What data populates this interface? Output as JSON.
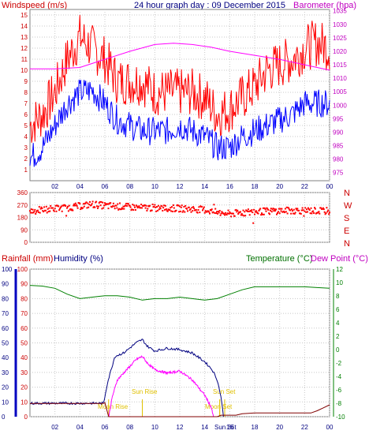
{
  "chart_data": [
    {
      "type": "line",
      "title": "24 hour graph day : 09 December 2015",
      "left_label": "Windspeed (m/s)",
      "right_label": "Barometer (hpa)",
      "x_ticks": [
        "02",
        "04",
        "06",
        "08",
        "10",
        "12",
        "14",
        "16",
        "18",
        "20",
        "22",
        "00"
      ],
      "y_left_ticks": [
        1,
        2,
        3,
        4,
        5,
        6,
        7,
        8,
        9,
        10,
        11,
        12,
        13,
        14,
        15
      ],
      "ylim_left": [
        0,
        15.5
      ],
      "y_right_ticks": [
        975,
        980,
        985,
        990,
        995,
        1000,
        1005,
        1010,
        1015,
        1020,
        1025,
        1030,
        1035
      ],
      "ylim_right": [
        972,
        1035.5
      ],
      "series": [
        {
          "name": "gust",
          "color": "#ff0000",
          "axis": "left",
          "points": [
            [
              0,
              5
            ],
            [
              1,
              6
            ],
            [
              2,
              8
            ],
            [
              3,
              11
            ],
            [
              4,
              13
            ],
            [
              5,
              12
            ],
            [
              6,
              11
            ],
            [
              7,
              9
            ],
            [
              8,
              9
            ],
            [
              9,
              9
            ],
            [
              10,
              8
            ],
            [
              11,
              8
            ],
            [
              12,
              8
            ],
            [
              13,
              8
            ],
            [
              14,
              7.5
            ],
            [
              15,
              6
            ],
            [
              16,
              6.5
            ],
            [
              17,
              7.5
            ],
            [
              18,
              8.5
            ],
            [
              19,
              10
            ],
            [
              20,
              10.5
            ],
            [
              21,
              11
            ],
            [
              22,
              12
            ],
            [
              23,
              12.5
            ],
            [
              24,
              12
            ]
          ]
        },
        {
          "name": "average",
          "color": "#0000ff",
          "axis": "left",
          "points": [
            [
              0,
              2
            ],
            [
              1,
              3
            ],
            [
              2,
              5
            ],
            [
              3,
              7
            ],
            [
              4,
              8
            ],
            [
              5,
              8.2
            ],
            [
              6,
              7
            ],
            [
              7,
              5.5
            ],
            [
              8,
              5
            ],
            [
              9,
              4.5
            ],
            [
              10,
              4.5
            ],
            [
              11,
              4.5
            ],
            [
              12,
              5
            ],
            [
              13,
              4.5
            ],
            [
              14,
              4
            ],
            [
              15,
              3
            ],
            [
              16,
              3
            ],
            [
              17,
              4
            ],
            [
              18,
              4.5
            ],
            [
              19,
              5
            ],
            [
              20,
              5.5
            ],
            [
              21,
              6
            ],
            [
              22,
              7
            ],
            [
              23,
              7
            ],
            [
              24,
              7
            ]
          ]
        },
        {
          "name": "barometer",
          "color": "#ff00ff",
          "axis": "right",
          "points": [
            [
              0,
              1013.5
            ],
            [
              2,
              1013.5
            ],
            [
              4,
              1014
            ],
            [
              6,
              1017
            ],
            [
              8,
              1020
            ],
            [
              10,
              1022.5
            ],
            [
              11.5,
              1023
            ],
            [
              13,
              1022.5
            ],
            [
              14.5,
              1021.5
            ],
            [
              16,
              1020
            ],
            [
              18,
              1018.5
            ],
            [
              20,
              1017
            ],
            [
              22,
              1015
            ],
            [
              24,
              1013
            ]
          ]
        }
      ]
    },
    {
      "type": "scatter",
      "right_labels": [
        "N",
        "W",
        "S",
        "E",
        "N"
      ],
      "x_ticks": [
        "02",
        "04",
        "06",
        "08",
        "10",
        "12",
        "14",
        "16",
        "18",
        "20",
        "22",
        "00"
      ],
      "y_ticks": [
        0,
        90,
        180,
        270,
        360
      ],
      "ylim": [
        0,
        360
      ],
      "series": [
        {
          "name": "direction",
          "color": "#ff0000",
          "points": [
            [
              0,
              225
            ],
            [
              1,
              235
            ],
            [
              2,
              245
            ],
            [
              3,
              250
            ],
            [
              4,
              262
            ],
            [
              5,
              275
            ],
            [
              6,
              265
            ],
            [
              7,
              260
            ],
            [
              8,
              255
            ],
            [
              9,
              250
            ],
            [
              10,
              250
            ],
            [
              11,
              245
            ],
            [
              12,
              245
            ],
            [
              13,
              240
            ],
            [
              14,
              235
            ],
            [
              15,
              215
            ],
            [
              16,
              205
            ],
            [
              17,
              215
            ],
            [
              18,
              220
            ],
            [
              19,
              225
            ],
            [
              20,
              228
            ],
            [
              21,
              230
            ],
            [
              22,
              230
            ],
            [
              23,
              228
            ],
            [
              24,
              225
            ]
          ]
        }
      ]
    },
    {
      "type": "line",
      "left_label_1": "Rainfall (mm)",
      "left_label_2": "Humidity (%)",
      "right_label_1": "Temperature (°C)",
      "right_label_2": "Dew Point (°C)",
      "x_ticks": [
        "02",
        "04",
        "06",
        "08",
        "10",
        "12",
        "14",
        "16",
        "18",
        "20",
        "22",
        "00"
      ],
      "y_left_ticks": [
        0,
        10,
        20,
        30,
        40,
        50,
        60,
        70,
        80,
        90,
        100
      ],
      "ylim_left": [
        0,
        100
      ],
      "y_right_ticks": [
        -10,
        -8,
        -6,
        -4,
        -2,
        0,
        2,
        4,
        6,
        8,
        10,
        12
      ],
      "ylim_right": [
        -10,
        12
      ],
      "annotations": [
        "Moon Rise",
        "Sun Rise",
        "Sun Set",
        "Moon Set",
        "Sun 36t"
      ],
      "series": [
        {
          "name": "humidity",
          "color": "#008000",
          "axis": "left",
          "points": [
            [
              0,
              89
            ],
            [
              1,
              88.5
            ],
            [
              2,
              87
            ],
            [
              3,
              83
            ],
            [
              4,
              80
            ],
            [
              5,
              81
            ],
            [
              6,
              82
            ],
            [
              7,
              82
            ],
            [
              8,
              81
            ],
            [
              9,
              79
            ],
            [
              10,
              80
            ],
            [
              11,
              80
            ],
            [
              12,
              81
            ],
            [
              13,
              80
            ],
            [
              14,
              79
            ],
            [
              15,
              80
            ],
            [
              16,
              83
            ],
            [
              17,
              86
            ],
            [
              18,
              88
            ],
            [
              19,
              88
            ],
            [
              20,
              88
            ],
            [
              21,
              88
            ],
            [
              22,
              88
            ],
            [
              23,
              87.5
            ],
            [
              24,
              87
            ]
          ]
        },
        {
          "name": "temperature",
          "color": "#000080",
          "axis": "right",
          "points": [
            [
              0,
              -8
            ],
            [
              5.9,
              -8
            ],
            [
              6.2,
              -5
            ],
            [
              6.8,
              -1
            ],
            [
              7.5,
              -0.5
            ],
            [
              8.5,
              1
            ],
            [
              9,
              1.5
            ],
            [
              9.4,
              0.5
            ],
            [
              10,
              -0.2
            ],
            [
              11,
              0.2
            ],
            [
              12,
              0
            ],
            [
              13,
              -0.5
            ],
            [
              14,
              -1.8
            ],
            [
              14.6,
              -3
            ],
            [
              15,
              -4.5
            ],
            [
              15.3,
              -7
            ],
            [
              15.5,
              -10
            ]
          ]
        },
        {
          "name": "dew_point",
          "color": "#ff00ff",
          "axis": "right",
          "points": [
            [
              6.3,
              -10
            ],
            [
              6.6,
              -7
            ],
            [
              7,
              -4.5
            ],
            [
              7.5,
              -3.5
            ],
            [
              8,
              -2.5
            ],
            [
              8.5,
              -1.5
            ],
            [
              9,
              -1
            ],
            [
              9.4,
              -2
            ],
            [
              10,
              -3
            ],
            [
              11,
              -3.5
            ],
            [
              12,
              -3.2
            ],
            [
              13,
              -4.5
            ],
            [
              14,
              -6.8
            ],
            [
              14.5,
              -8.5
            ],
            [
              14.7,
              -10
            ]
          ]
        },
        {
          "name": "rainfall",
          "color": "#800000",
          "axis": "left",
          "points": [
            [
              0,
              9
            ],
            [
              5.9,
              9
            ],
            [
              6,
              9.5
            ],
            [
              6.3,
              0
            ],
            [
              15,
              0
            ],
            [
              15.3,
              1
            ],
            [
              16.5,
              1
            ],
            [
              17,
              2
            ],
            [
              18,
              2.5
            ],
            [
              22.5,
              2.5
            ],
            [
              23,
              4
            ],
            [
              23.5,
              6
            ],
            [
              24,
              8
            ]
          ]
        }
      ]
    }
  ]
}
